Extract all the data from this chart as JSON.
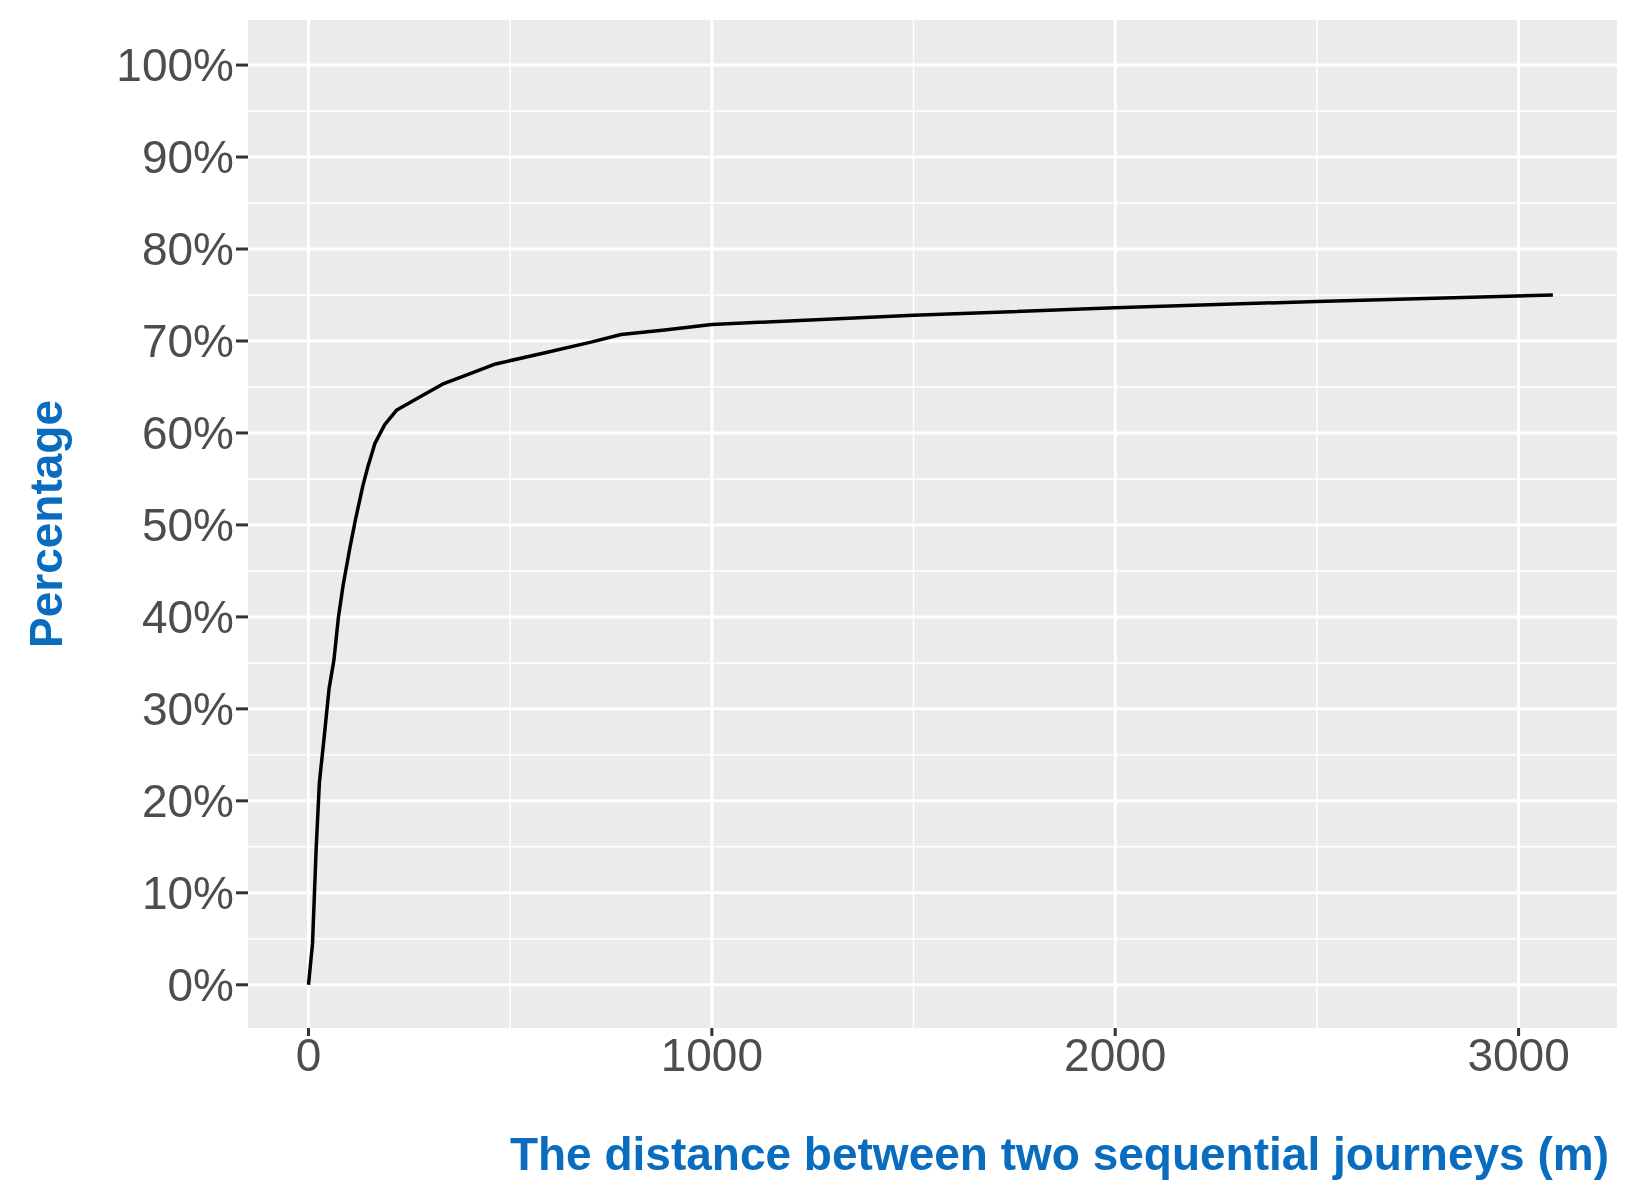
{
  "chart_data": {
    "type": "line",
    "xlabel": "The distance between two sequential journeys (m)",
    "ylabel": "Percentage",
    "x": [
      0,
      10,
      19,
      27,
      39,
      51,
      63,
      74,
      86,
      103,
      117,
      135,
      147,
      165,
      189,
      219,
      267,
      332,
      404,
      464,
      584,
      703,
      775,
      883,
      1000,
      1500,
      2000,
      2500,
      3085
    ],
    "series": [
      {
        "color": "#000000",
        "values": [
          0,
          4.5,
          14.8,
          22,
          27,
          32.2,
          35.3,
          39.9,
          43.5,
          47.6,
          50.7,
          54.3,
          56.3,
          58.9,
          60.9,
          62.5,
          63.7,
          65.3,
          66.5,
          67.5,
          68.7,
          69.9,
          70.7,
          71.2,
          71.8,
          72.8,
          73.6,
          74.3,
          75
        ]
      }
    ],
    "xlim": [
      -150,
      3244
    ],
    "xticks": [
      0,
      1000,
      2000,
      3000
    ],
    "ylim": [
      -4.7,
      104.9
    ],
    "yticks": [
      {
        "value": 0,
        "label": "0%"
      },
      {
        "value": 10,
        "label": "10%"
      },
      {
        "value": 20,
        "label": "20%"
      },
      {
        "value": 30,
        "label": "30%"
      },
      {
        "value": 40,
        "label": "40%"
      },
      {
        "value": 50,
        "label": "50%"
      },
      {
        "value": 60,
        "label": "60%"
      },
      {
        "value": 70,
        "label": "70%"
      },
      {
        "value": 80,
        "label": "80%"
      },
      {
        "value": 90,
        "label": "90%"
      },
      {
        "value": 100,
        "label": "100%"
      }
    ],
    "grid": true,
    "marker": "none",
    "line_style": "solid"
  }
}
